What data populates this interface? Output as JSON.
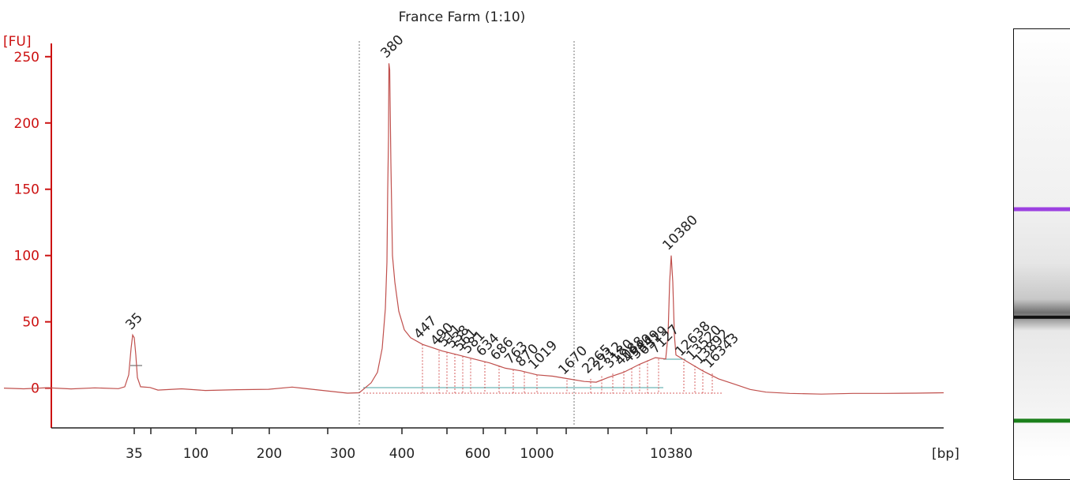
{
  "chart_data": {
    "type": "line",
    "title": "France Farm (1:10)",
    "ylabel": "[FU]",
    "xlabel": "[bp]",
    "ylim": [
      -30,
      260
    ],
    "yticks": [
      0,
      50,
      100,
      150,
      200,
      250
    ],
    "xtick_labels": [
      "35",
      "100",
      "200",
      "300",
      "400",
      "600",
      "1000",
      "10380"
    ],
    "series": [
      {
        "points": [
          [
            5,
            0
          ],
          [
            30,
            -0.5
          ],
          [
            60,
            0.3
          ],
          [
            90,
            -0.6
          ],
          [
            120,
            0.2
          ],
          [
            150,
            -0.4
          ],
          [
            158,
            1
          ],
          [
            163,
            10
          ],
          [
            166,
            30
          ],
          [
            168,
            40
          ],
          [
            170,
            38
          ],
          [
            172,
            25
          ],
          [
            174,
            8
          ],
          [
            178,
            1
          ],
          [
            190,
            0.5
          ],
          [
            200,
            -1.5
          ],
          [
            230,
            -0.5
          ],
          [
            260,
            -1.8
          ],
          [
            300,
            -1.2
          ],
          [
            340,
            -0.9
          ],
          [
            370,
            0.8
          ],
          [
            400,
            -1.2
          ],
          [
            440,
            -3.8
          ],
          [
            455,
            -3.5
          ],
          [
            462,
            0
          ],
          [
            470,
            4
          ],
          [
            478,
            12
          ],
          [
            484,
            30
          ],
          [
            488,
            60
          ],
          [
            490,
            95
          ],
          [
            491,
            150
          ],
          [
            492,
            190
          ],
          [
            492.5,
            245
          ],
          [
            493.5,
            240
          ],
          [
            495,
            170
          ],
          [
            497,
            100
          ],
          [
            500,
            80
          ],
          [
            505,
            58
          ],
          [
            512,
            44
          ],
          [
            520,
            38
          ],
          [
            535,
            33
          ],
          [
            560,
            28
          ],
          [
            580,
            25
          ],
          [
            600,
            22
          ],
          [
            620,
            19
          ],
          [
            640,
            15
          ],
          [
            660,
            13
          ],
          [
            680,
            10
          ],
          [
            700,
            9
          ],
          [
            720,
            7
          ],
          [
            740,
            5
          ],
          [
            755,
            4.5
          ],
          [
            770,
            8
          ],
          [
            790,
            12
          ],
          [
            810,
            18
          ],
          [
            830,
            23
          ],
          [
            843,
            22
          ],
          [
            846,
            40
          ],
          [
            848,
            80
          ],
          [
            850,
            100
          ],
          [
            852,
            80
          ],
          [
            854,
            40
          ],
          [
            856,
            25
          ],
          [
            870,
            20
          ],
          [
            890,
            13
          ],
          [
            910,
            7
          ],
          [
            930,
            3
          ],
          [
            950,
            -1
          ],
          [
            970,
            -3
          ],
          [
            1000,
            -4
          ],
          [
            1040,
            -4.5
          ],
          [
            1080,
            -4
          ],
          [
            1120,
            -4
          ],
          [
            1160,
            -3.8
          ],
          [
            1195,
            -3.5
          ]
        ]
      }
    ],
    "peaks": [
      {
        "label": "35",
        "x": 170,
        "y": 40,
        "color": "#2a8a2a"
      },
      {
        "label": "380",
        "x": 493,
        "y": 245,
        "color": "#222222"
      },
      {
        "label": "447",
        "x": 535,
        "y": 33,
        "color": "#222222"
      },
      {
        "label": "490",
        "x": 556,
        "y": 28,
        "color": "#222222"
      },
      {
        "label": "511",
        "x": 566,
        "y": 27,
        "color": "#222222"
      },
      {
        "label": "538",
        "x": 576,
        "y": 26,
        "color": "#222222"
      },
      {
        "label": "561",
        "x": 586,
        "y": 24,
        "color": "#222222"
      },
      {
        "label": "581",
        "x": 596,
        "y": 22,
        "color": "#222222"
      },
      {
        "label": "634",
        "x": 614,
        "y": 20,
        "color": "#222222"
      },
      {
        "label": "686",
        "x": 632,
        "y": 17,
        "color": "#222222"
      },
      {
        "label": "763",
        "x": 650,
        "y": 14,
        "color": "#222222"
      },
      {
        "label": "870",
        "x": 664,
        "y": 12,
        "color": "#222222"
      },
      {
        "label": "1019",
        "x": 680,
        "y": 10,
        "color": "#222222"
      },
      {
        "label": "1670",
        "x": 718,
        "y": 6,
        "color": "#222222"
      },
      {
        "label": "2265",
        "x": 748,
        "y": 7,
        "color": "#222222"
      },
      {
        "label": "2712",
        "x": 762,
        "y": 9,
        "color": "#222222"
      },
      {
        "label": "3180",
        "x": 776,
        "y": 11,
        "color": "#222222"
      },
      {
        "label": "4088",
        "x": 790,
        "y": 13,
        "color": "#222222"
      },
      {
        "label": "4940",
        "x": 800,
        "y": 15,
        "color": "#222222"
      },
      {
        "label": "5349",
        "x": 810,
        "y": 18,
        "color": "#222222"
      },
      {
        "label": "6319",
        "x": 820,
        "y": 21,
        "color": "#222222"
      },
      {
        "label": "7127",
        "x": 834,
        "y": 22,
        "color": "#222222"
      },
      {
        "label": "10380",
        "x": 850,
        "y": 100,
        "color": "#9b40e0"
      },
      {
        "label": "12638",
        "x": 866,
        "y": 20,
        "color": "#222222"
      },
      {
        "label": "13520",
        "x": 880,
        "y": 17,
        "color": "#222222"
      },
      {
        "label": "13892",
        "x": 890,
        "y": 14,
        "color": "#222222"
      },
      {
        "label": "16343",
        "x": 902,
        "y": 11,
        "color": "#222222"
      }
    ],
    "grid": false
  },
  "gel": {
    "bands": [
      {
        "position": 0.4,
        "color": "#9b40e0",
        "type": "marker-upper"
      },
      {
        "position": 0.64,
        "color": "#111111",
        "type": "sample"
      },
      {
        "position": 0.87,
        "color": "#1a7f1a",
        "type": "marker-lower"
      }
    ]
  }
}
